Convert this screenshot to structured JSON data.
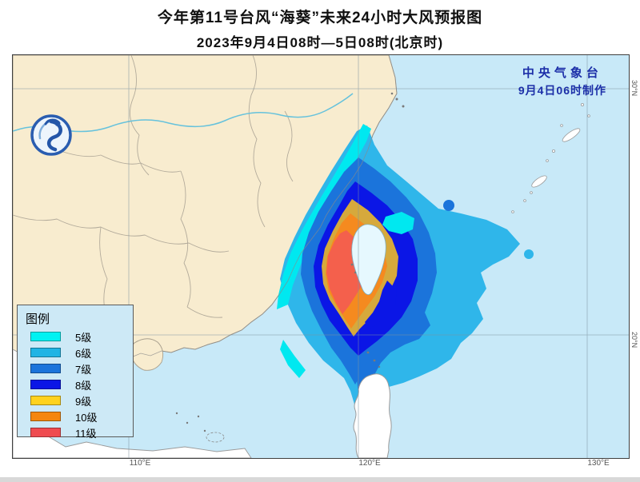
{
  "header": {
    "title_line1": "今年第11号台风“海葵”未来24小时大风预报图",
    "title_line2": "2023年9月4日08时—5日08时(北京时)"
  },
  "credit": {
    "agency": "中央气象台",
    "issued": "9月4日06时制作"
  },
  "legend": {
    "title": "图例",
    "items": [
      {
        "label": "5级",
        "color": "#00F2F2"
      },
      {
        "label": "6级",
        "color": "#20B4E4"
      },
      {
        "label": "7级",
        "color": "#1B74DB"
      },
      {
        "label": "8级",
        "color": "#0B16E6"
      },
      {
        "label": "9级",
        "color": "#FFD21E"
      },
      {
        "label": "10级",
        "color": "#F5860F"
      },
      {
        "label": "11级",
        "color": "#EF4B50"
      }
    ]
  },
  "axis": {
    "lon": [
      {
        "text": "110°E"
      },
      {
        "text": "120°E"
      },
      {
        "text": "130°E"
      }
    ],
    "lat": [
      {
        "text": "30°N"
      },
      {
        "text": "20°N"
      }
    ]
  },
  "colors": {
    "sea": "#C8E9F8",
    "land_china": "#F8ECCF",
    "land_foreign": "#FFFFFF",
    "coast_line": "#8A8A8A",
    "province_line": "#B3AB9B",
    "river": "#66C2DC",
    "grid": "#7E93A0",
    "taiwan_fill": "#E6F8FE",
    "wind5": "#00E8F0",
    "wind6": "#2FB6EA",
    "wind7": "#1B74DB",
    "wind8": "#0B16E6",
    "wind9": "#D6A93C",
    "wind10": "#F58A1F",
    "wind11": "#F4604C",
    "credit_text": "#1C2FA8"
  }
}
